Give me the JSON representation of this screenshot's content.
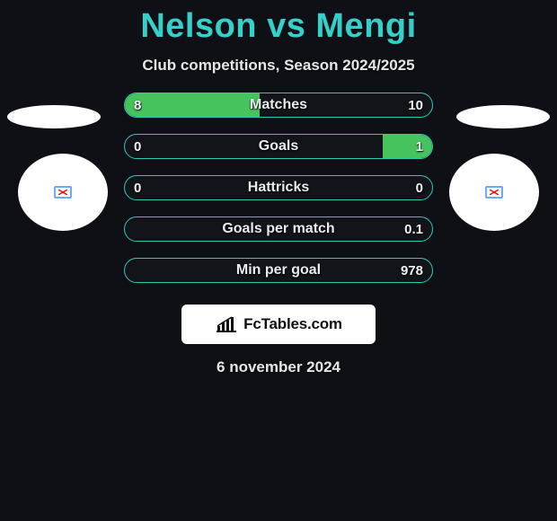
{
  "title": "Nelson vs Mengi",
  "subtitle": "Club competitions, Season 2024/2025",
  "date": "6 november 2024",
  "footer": {
    "brand": "FcTables.com"
  },
  "colors": {
    "background": "#0e1016",
    "title": "#36cfc9",
    "bar_border": "#2ec9ba",
    "fill_left": "#47c35e",
    "fill_right": "#47c35e",
    "text": "#e8ecef",
    "badge_bg": "#ffffff"
  },
  "stats": [
    {
      "label": "Matches",
      "left_text": "8",
      "right_text": "10",
      "left_pct": 44,
      "right_pct": 0
    },
    {
      "label": "Goals",
      "left_text": "0",
      "right_text": "1",
      "left_pct": 0,
      "right_pct": 16
    },
    {
      "label": "Hattricks",
      "left_text": "0",
      "right_text": "0",
      "left_pct": 0,
      "right_pct": 0
    },
    {
      "label": "Goals per match",
      "left_text": "",
      "right_text": "0.1",
      "left_pct": 0,
      "right_pct": 0
    },
    {
      "label": "Min per goal",
      "left_text": "",
      "right_text": "978",
      "left_pct": 0,
      "right_pct": 0
    }
  ]
}
